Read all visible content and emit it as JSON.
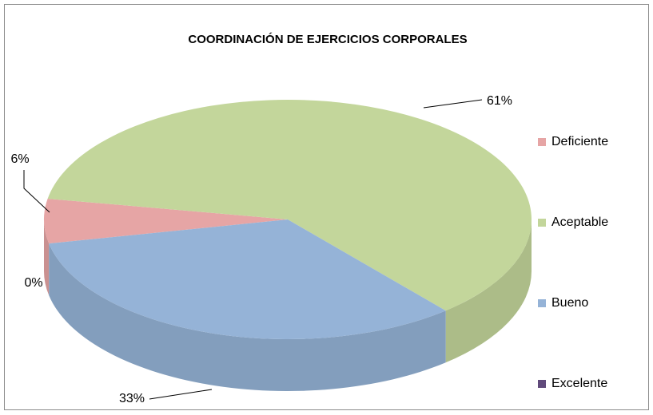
{
  "chart_data": {
    "type": "pie",
    "title": "COORDINACIÓN DE EJERCICIOS CORPORALES",
    "categories": [
      "Deficiente",
      "Aceptable",
      "Bueno",
      "Excelente"
    ],
    "values": [
      6,
      61,
      33,
      0
    ],
    "value_labels": [
      "6%",
      "61%",
      "33%",
      "0%"
    ],
    "colors": [
      "#e6a5a5",
      "#c3d69b",
      "#95b3d7",
      "#604a7b"
    ],
    "legend": "right"
  }
}
